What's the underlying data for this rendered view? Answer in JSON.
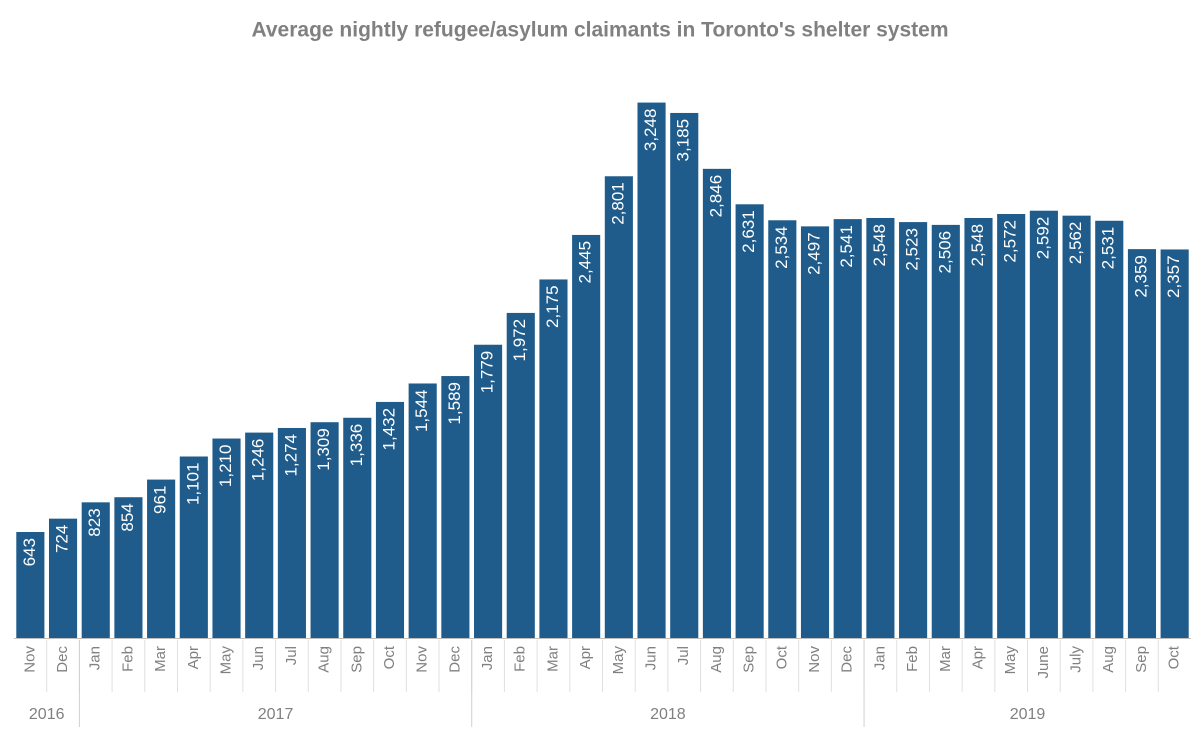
{
  "chart_data": {
    "type": "bar",
    "title": "Average nightly refugee/asylum claimants in Toronto's shelter system",
    "categories": [
      "Nov",
      "Dec",
      "Jan",
      "Feb",
      "Mar",
      "Apr",
      "May",
      "Jun",
      "Jul",
      "Aug",
      "Sep",
      "Oct",
      "Nov",
      "Dec",
      "Jan",
      "Feb",
      "Mar",
      "Apr",
      "May",
      "Jun",
      "Jul",
      "Aug",
      "Sep",
      "Oct",
      "Nov",
      "Dec",
      "Jan",
      "Feb",
      "Mar",
      "Apr",
      "May",
      "June",
      "July",
      "Aug",
      "Sep",
      "Oct"
    ],
    "years": [
      "2016",
      "2016",
      "2017",
      "2017",
      "2017",
      "2017",
      "2017",
      "2017",
      "2017",
      "2017",
      "2017",
      "2017",
      "2017",
      "2017",
      "2018",
      "2018",
      "2018",
      "2018",
      "2018",
      "2018",
      "2018",
      "2018",
      "2018",
      "2018",
      "2018",
      "2018",
      "2019",
      "2019",
      "2019",
      "2019",
      "2019",
      "2019",
      "2019",
      "2019",
      "2019",
      "2019"
    ],
    "values": [
      643,
      724,
      823,
      854,
      961,
      1101,
      1210,
      1246,
      1274,
      1309,
      1336,
      1432,
      1544,
      1589,
      1779,
      1972,
      2175,
      2445,
      2801,
      3248,
      3185,
      2846,
      2631,
      2534,
      2497,
      2541,
      2548,
      2523,
      2506,
      2548,
      2572,
      2592,
      2562,
      2531,
      2359,
      2357
    ],
    "value_labels": [
      "643",
      "724",
      "823",
      "854",
      "961",
      "1,101",
      "1,210",
      "1,246",
      "1,274",
      "1,309",
      "1,336",
      "1,432",
      "1,544",
      "1,589",
      "1,779",
      "1,972",
      "2,175",
      "2,445",
      "2,801",
      "3,248",
      "3,185",
      "2,846",
      "2,631",
      "2,534",
      "2,497",
      "2,541",
      "2,548",
      "2,523",
      "2,506",
      "2,548",
      "2,572",
      "2,592",
      "2,562",
      "2,531",
      "2,359",
      "2,357"
    ],
    "color": "#1f5c8b",
    "ylim": [
      0,
      3300
    ]
  }
}
